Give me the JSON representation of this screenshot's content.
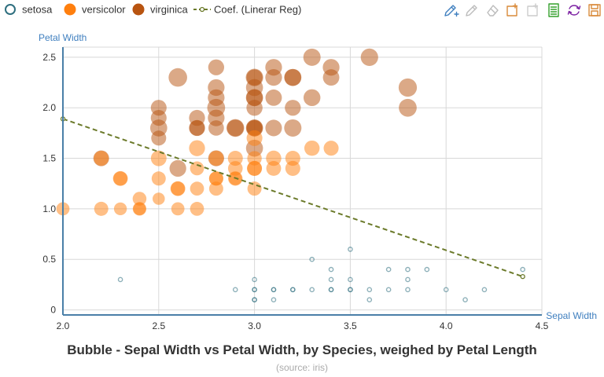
{
  "chart_data": {
    "type": "scatter",
    "title": "Bubble - Sepal Width vs Petal Width, by Species, weighed by Petal Length",
    "subtitle": "(source: iris)",
    "xlabel": "Sepal Width",
    "ylabel": "Petal Width",
    "xlim": [
      2.0,
      4.5
    ],
    "ylim": [
      -0.05,
      2.6
    ],
    "xticks": [
      "2.0",
      "2.5",
      "3.0",
      "3.5",
      "4.0",
      "4.5"
    ],
    "yticks": [
      "0",
      "0.5",
      "1.0",
      "1.5",
      "2.0",
      "2.5"
    ],
    "grid": true,
    "legend_position": "top-left",
    "colors": {
      "setosa": "#2f6f7f",
      "versicolor": "#ff7f0e",
      "virginica": "#b85410",
      "coef": "#6b7a2a"
    },
    "series": [
      {
        "name": "setosa",
        "style": "ring",
        "points": [
          [
            2.3,
            0.3,
            1.3
          ],
          [
            2.9,
            0.2,
            1.4
          ],
          [
            3.0,
            0.1,
            1.1
          ],
          [
            3.0,
            0.1,
            1.4
          ],
          [
            3.0,
            0.2,
            1.4
          ],
          [
            3.0,
            0.2,
            1.6
          ],
          [
            3.0,
            0.3,
            1.3
          ],
          [
            3.1,
            0.1,
            1.5
          ],
          [
            3.1,
            0.2,
            1.5
          ],
          [
            3.1,
            0.2,
            1.6
          ],
          [
            3.2,
            0.2,
            1.2
          ],
          [
            3.2,
            0.2,
            1.6
          ],
          [
            3.3,
            0.2,
            1.4
          ],
          [
            3.3,
            0.5,
            1.7
          ],
          [
            3.4,
            0.2,
            1.9
          ],
          [
            3.4,
            0.2,
            1.6
          ],
          [
            3.4,
            0.3,
            1.4
          ],
          [
            3.4,
            0.4,
            1.6
          ],
          [
            3.5,
            0.2,
            1.5
          ],
          [
            3.5,
            0.2,
            1.4
          ],
          [
            3.5,
            0.3,
            1.4
          ],
          [
            3.5,
            0.6,
            1.6
          ],
          [
            3.6,
            0.1,
            1.4
          ],
          [
            3.6,
            0.2,
            1.4
          ],
          [
            3.7,
            0.2,
            1.5
          ],
          [
            3.7,
            0.4,
            1.5
          ],
          [
            3.8,
            0.2,
            1.6
          ],
          [
            3.8,
            0.3,
            1.7
          ],
          [
            3.8,
            0.4,
            1.9
          ],
          [
            3.9,
            0.4,
            1.7
          ],
          [
            4.0,
            0.2,
            1.2
          ],
          [
            4.1,
            0.1,
            1.5
          ],
          [
            4.2,
            0.2,
            1.4
          ],
          [
            4.4,
            0.4,
            1.5
          ]
        ]
      },
      {
        "name": "versicolor",
        "style": "filled",
        "points": [
          [
            2.0,
            1.0,
            3.5
          ],
          [
            2.2,
            1.0,
            4.0
          ],
          [
            2.2,
            1.5,
            4.5
          ],
          [
            2.3,
            1.0,
            3.3
          ],
          [
            2.3,
            1.3,
            4.0
          ],
          [
            2.3,
            1.3,
            4.4
          ],
          [
            2.4,
            1.0,
            3.3
          ],
          [
            2.4,
            1.0,
            3.7
          ],
          [
            2.4,
            1.1,
            3.8
          ],
          [
            2.5,
            1.1,
            3.0
          ],
          [
            2.5,
            1.3,
            4.0
          ],
          [
            2.5,
            1.5,
            4.9
          ],
          [
            2.6,
            1.0,
            3.5
          ],
          [
            2.6,
            1.2,
            4.0
          ],
          [
            2.6,
            1.2,
            4.4
          ],
          [
            2.7,
            1.0,
            3.9
          ],
          [
            2.7,
            1.2,
            3.9
          ],
          [
            2.7,
            1.4,
            3.9
          ],
          [
            2.7,
            1.6,
            5.1
          ],
          [
            2.8,
            1.2,
            4.0
          ],
          [
            2.8,
            1.3,
            4.0
          ],
          [
            2.8,
            1.3,
            4.1
          ],
          [
            2.8,
            1.5,
            4.6
          ],
          [
            2.9,
            1.3,
            3.6
          ],
          [
            2.9,
            1.3,
            4.2
          ],
          [
            2.9,
            1.4,
            4.3
          ],
          [
            2.9,
            1.5,
            4.5
          ],
          [
            3.0,
            1.2,
            4.0
          ],
          [
            3.0,
            1.4,
            4.4
          ],
          [
            3.0,
            1.4,
            4.5
          ],
          [
            3.0,
            1.5,
            4.2
          ],
          [
            3.0,
            1.7,
            5.0
          ],
          [
            3.1,
            1.4,
            4.4
          ],
          [
            3.1,
            1.5,
            4.7
          ],
          [
            3.2,
            1.4,
            4.5
          ],
          [
            3.2,
            1.5,
            4.5
          ],
          [
            3.3,
            1.6,
            4.7
          ],
          [
            3.4,
            1.6,
            4.5
          ]
        ]
      },
      {
        "name": "virginica",
        "style": "filled",
        "points": [
          [
            2.2,
            1.5,
            5.0
          ],
          [
            2.5,
            1.7,
            4.5
          ],
          [
            2.5,
            1.8,
            5.8
          ],
          [
            2.5,
            1.9,
            5.0
          ],
          [
            2.5,
            2.0,
            5.0
          ],
          [
            2.6,
            1.4,
            5.6
          ],
          [
            2.6,
            2.3,
            6.9
          ],
          [
            2.7,
            1.8,
            4.9
          ],
          [
            2.7,
            1.8,
            5.1
          ],
          [
            2.7,
            1.9,
            5.1
          ],
          [
            2.8,
            1.5,
            5.1
          ],
          [
            2.8,
            1.8,
            4.8
          ],
          [
            2.8,
            1.9,
            5.6
          ],
          [
            2.8,
            2.0,
            6.4
          ],
          [
            2.8,
            2.1,
            5.6
          ],
          [
            2.8,
            2.2,
            5.6
          ],
          [
            2.8,
            2.4,
            5.1
          ],
          [
            2.9,
            1.8,
            5.6
          ],
          [
            2.9,
            1.8,
            6.3
          ],
          [
            3.0,
            1.6,
            5.8
          ],
          [
            3.0,
            1.8,
            4.8
          ],
          [
            3.0,
            1.8,
            5.5
          ],
          [
            3.0,
            1.8,
            5.9
          ],
          [
            3.0,
            2.0,
            5.2
          ],
          [
            3.0,
            2.1,
            5.5
          ],
          [
            3.0,
            2.1,
            5.9
          ],
          [
            3.0,
            2.2,
            5.8
          ],
          [
            3.0,
            2.3,
            5.2
          ],
          [
            3.0,
            2.3,
            6.1
          ],
          [
            3.1,
            1.8,
            5.5
          ],
          [
            3.1,
            2.1,
            5.4
          ],
          [
            3.1,
            2.3,
            5.6
          ],
          [
            3.1,
            2.4,
            5.6
          ],
          [
            3.2,
            1.8,
            6.0
          ],
          [
            3.2,
            2.0,
            5.1
          ],
          [
            3.2,
            2.3,
            5.7
          ],
          [
            3.2,
            2.3,
            5.9
          ],
          [
            3.3,
            2.1,
            5.7
          ],
          [
            3.3,
            2.5,
            6.0
          ],
          [
            3.4,
            2.3,
            5.4
          ],
          [
            3.4,
            2.4,
            5.6
          ],
          [
            3.6,
            2.5,
            6.1
          ],
          [
            3.8,
            2.0,
            6.4
          ],
          [
            3.8,
            2.2,
            6.7
          ]
        ]
      },
      {
        "name": "Coef. (Linerar Reg)",
        "style": "dashed-line",
        "points": [
          [
            2.0,
            1.89
          ],
          [
            4.4,
            0.33
          ]
        ]
      }
    ]
  },
  "toolbar": [
    {
      "icon": "pencil-plus-icon",
      "color": "#3f7fbf"
    },
    {
      "icon": "pencil-icon",
      "color": "#bbbbbb"
    },
    {
      "icon": "eraser-icon",
      "color": "#bbbbbb"
    },
    {
      "icon": "new-series-icon",
      "color": "#d98a3a"
    },
    {
      "icon": "clear-series-icon",
      "color": "#cccccc"
    },
    {
      "icon": "data-table-icon",
      "color": "#33a02c"
    },
    {
      "icon": "refresh-icon",
      "color": "#7b1fa2"
    },
    {
      "icon": "save-icon",
      "color": "#d98a3a"
    }
  ]
}
